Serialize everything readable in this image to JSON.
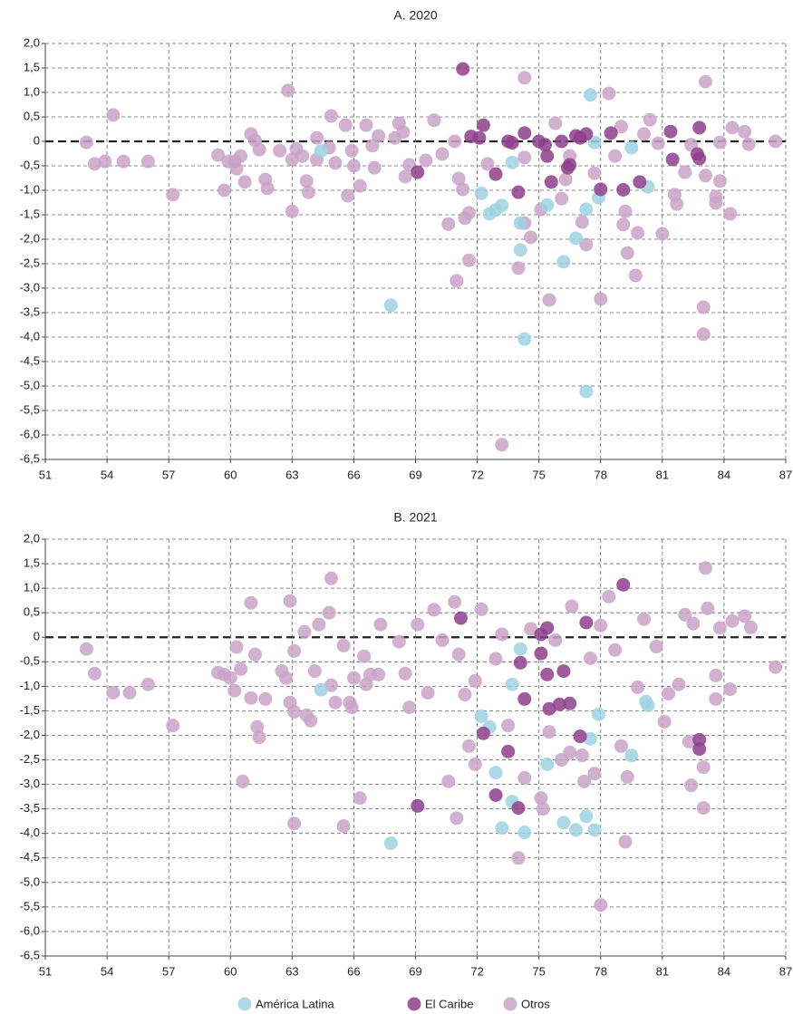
{
  "chart_data": [
    {
      "type": "scatter",
      "title": "A. 2020",
      "xlim": [
        51,
        87
      ],
      "ylim": [
        -6.5,
        2
      ],
      "grid": true,
      "xticks": [
        51,
        54,
        57,
        60,
        63,
        66,
        69,
        72,
        75,
        78,
        81,
        84,
        87
      ],
      "yticks": [
        {
          "value": -6.5,
          "label": "-6,5"
        },
        {
          "value": -6,
          "label": "-6,0"
        },
        {
          "value": -5.5,
          "label": "-5,5"
        },
        {
          "value": -5,
          "label": "-5,0"
        },
        {
          "value": -4.5,
          "label": "-4,5"
        },
        {
          "value": -4,
          "label": "-4,0"
        },
        {
          "value": -3.5,
          "label": "-3,5"
        },
        {
          "value": -3,
          "label": "-3,0"
        },
        {
          "value": -2.5,
          "label": "-2,5"
        },
        {
          "value": -2,
          "label": "-2,0"
        },
        {
          "value": -1.5,
          "label": "-1,5"
        },
        {
          "value": -1,
          "label": "-1,0"
        },
        {
          "value": -0.5,
          "label": "-0,5"
        },
        {
          "value": 0,
          "label": "0"
        },
        {
          "value": 0.5,
          "label": "0,5"
        },
        {
          "value": 1,
          "label": "1,0"
        },
        {
          "value": 1.5,
          "label": "1,5"
        },
        {
          "value": 2,
          "label": "2,0"
        }
      ],
      "series": [
        {
          "color": "#c9a2c8",
          "x": [
            53.0,
            53.4,
            54.3,
            53.9,
            54.8,
            56.0,
            57.2,
            59.4,
            59.7,
            59.9,
            60.2,
            60.3,
            60.5,
            60.7,
            61.0,
            61.2,
            61.4,
            61.7,
            61.8,
            62.4,
            62.8,
            63.0,
            63.0,
            63.2,
            63.5,
            63.7,
            63.8,
            64.2,
            64.2,
            64.9,
            64.8,
            65.1,
            65.6,
            65.7,
            65.9,
            66.0,
            66.3,
            66.6,
            66.9,
            67.0,
            67.2,
            68.0,
            68.2,
            68.4,
            68.5,
            68.7,
            69.5,
            69.9,
            70.3,
            70.6,
            70.9,
            71.0,
            71.1,
            71.4,
            71.6,
            71.6,
            71.3,
            72.5,
            73.2,
            74.0,
            74.3,
            74.3,
            74.6,
            74.3,
            75.1,
            75.5,
            75.8,
            76.1,
            76.3,
            76.5,
            77.1,
            77.3,
            77.7,
            78.0,
            78.4,
            78.7,
            79.0,
            79.1,
            79.2,
            79.3,
            79.7,
            79.8,
            80.1,
            80.4,
            80.8,
            81.0,
            81.6,
            81.7,
            82.1,
            82.4,
            83.1,
            83.0,
            83.0,
            83.1,
            83.6,
            83.6,
            83.8,
            83.8,
            84.3,
            84.4,
            85.0,
            85.2,
            86.5
          ],
          "values": [
            -0.02,
            -0.46,
            0.54,
            -0.41,
            -0.41,
            -0.41,
            -1.09,
            -0.28,
            -1.0,
            -0.41,
            -0.41,
            -0.56,
            -0.3,
            -0.83,
            0.15,
            0.02,
            -0.17,
            -0.78,
            -0.96,
            -0.19,
            1.04,
            -1.43,
            -0.37,
            -0.15,
            -0.3,
            -0.81,
            -1.04,
            -0.37,
            0.07,
            0.52,
            -0.13,
            -0.44,
            0.33,
            -1.11,
            -0.19,
            -0.5,
            -0.91,
            0.33,
            -0.09,
            -0.54,
            0.11,
            0.07,
            0.37,
            0.19,
            -0.72,
            -0.48,
            -0.39,
            0.43,
            -0.26,
            -1.69,
            0.0,
            -2.85,
            -0.76,
            -1.57,
            -1.46,
            -2.43,
            -0.98,
            -0.46,
            -6.2,
            -2.59,
            1.3,
            -1.67,
            -1.96,
            -0.33,
            -1.39,
            -3.24,
            0.37,
            -1.17,
            -0.78,
            -0.3,
            -1.65,
            -2.11,
            -0.65,
            -3.22,
            0.98,
            -0.3,
            0.3,
            -1.7,
            -1.43,
            -2.28,
            -2.74,
            -1.87,
            0.15,
            0.44,
            -0.04,
            -1.89,
            -1.09,
            -1.28,
            -0.63,
            -0.07,
            1.22,
            -3.39,
            -3.94,
            -0.7,
            -1.13,
            -1.26,
            -0.81,
            -0.02,
            -1.48,
            0.28,
            0.2,
            -0.06,
            0.0
          ]
        },
        {
          "color": "#9fd2e2",
          "x": [
            64.4,
            77.5,
            77.7,
            79.5,
            80.3,
            77.9,
            73.7,
            72.2,
            72.6,
            72.9,
            73.2,
            75.4,
            74.1,
            74.1,
            76.2,
            76.8,
            77.3,
            67.8,
            74.3,
            77.3
          ],
          "values": [
            -0.2,
            0.95,
            -0.02,
            -0.13,
            -0.93,
            -1.15,
            -0.43,
            -1.06,
            -1.48,
            -1.4,
            -1.31,
            -1.3,
            -1.67,
            -2.22,
            -2.46,
            -1.98,
            -1.39,
            -3.35,
            -4.04,
            -5.11
          ]
        },
        {
          "color": "#8e3f8c",
          "x": [
            71.3,
            69.1,
            72.3,
            71.7,
            72.1,
            72.9,
            73.5,
            74.3,
            74.0,
            75.0,
            75.3,
            75.4,
            75.6,
            76.1,
            76.4,
            76.5,
            76.8,
            77.0,
            77.3,
            78.0,
            79.1,
            79.9,
            81.4,
            81.5,
            82.7,
            82.8,
            82.8,
            73.7,
            78.5
          ],
          "values": [
            1.48,
            -0.63,
            0.33,
            0.1,
            0.07,
            -0.67,
            0.0,
            0.17,
            -1.04,
            0.0,
            -0.07,
            -0.3,
            -0.83,
            0.0,
            -0.54,
            -0.48,
            0.11,
            0.07,
            0.15,
            -0.98,
            -0.99,
            -0.83,
            0.2,
            -0.37,
            -0.26,
            -0.35,
            0.28,
            -0.03,
            0.17
          ]
        }
      ]
    },
    {
      "type": "scatter",
      "title": "B. 2021",
      "xlim": [
        51,
        87
      ],
      "ylim": [
        -6.5,
        2
      ],
      "grid": true,
      "xticks": [
        51,
        54,
        57,
        60,
        63,
        66,
        69,
        72,
        75,
        78,
        81,
        84,
        87
      ],
      "yticks": [
        {
          "value": -6.5,
          "label": "-6,5"
        },
        {
          "value": -6,
          "label": "-6,0"
        },
        {
          "value": -5.5,
          "label": "-5,5"
        },
        {
          "value": -5,
          "label": "-5,0"
        },
        {
          "value": -4.5,
          "label": "-4,5"
        },
        {
          "value": -4,
          "label": "-4,0"
        },
        {
          "value": -3.5,
          "label": "-3,5"
        },
        {
          "value": -3,
          "label": "-3,0"
        },
        {
          "value": -2.5,
          "label": "-2,5"
        },
        {
          "value": -2,
          "label": "-2,0"
        },
        {
          "value": -1.5,
          "label": "-1,5"
        },
        {
          "value": -1,
          "label": "-1,0"
        },
        {
          "value": -0.5,
          "label": "-0,5"
        },
        {
          "value": 0,
          "label": "0"
        },
        {
          "value": 0.5,
          "label": "0,5"
        },
        {
          "value": 1,
          "label": "1,0"
        },
        {
          "value": 1.5,
          "label": "1,5"
        },
        {
          "value": 2,
          "label": "2,0"
        }
      ],
      "series": [
        {
          "name": "Otros",
          "color": "#c9a2c8",
          "x": [
            53.0,
            53.4,
            54.3,
            55.1,
            56.0,
            57.2,
            59.4,
            59.7,
            60.0,
            60.2,
            60.3,
            60.5,
            60.6,
            61.0,
            61.0,
            61.2,
            61.3,
            61.4,
            61.7,
            62.5,
            62.7,
            62.9,
            62.9,
            63.1,
            63.1,
            63.1,
            63.6,
            63.7,
            63.9,
            64.1,
            64.3,
            64.8,
            64.9,
            64.9,
            65.1,
            65.5,
            65.5,
            65.8,
            65.9,
            66.0,
            66.3,
            66.5,
            66.6,
            66.8,
            67.2,
            67.3,
            68.2,
            68.5,
            68.7,
            69.1,
            69.6,
            69.9,
            70.3,
            70.6,
            70.9,
            71.0,
            71.1,
            71.4,
            71.6,
            71.9,
            71.9,
            72.2,
            72.9,
            73.2,
            73.5,
            74.0,
            74.3,
            74.6,
            75.1,
            75.2,
            75.5,
            75.8,
            76.1,
            76.5,
            76.6,
            77.1,
            77.2,
            77.5,
            77.7,
            78.0,
            78.0,
            78.4,
            78.7,
            79.0,
            79.3,
            79.2,
            79.8,
            80.1,
            80.7,
            81.1,
            81.3,
            81.8,
            82.1,
            82.3,
            82.4,
            82.5,
            83.1,
            83.2,
            83.0,
            83.0,
            83.6,
            83.6,
            83.8,
            84.3,
            84.4,
            85.0,
            85.3,
            86.5
          ],
          "values": [
            -0.24,
            -0.74,
            -1.13,
            -1.13,
            -0.96,
            -1.8,
            -0.72,
            -0.76,
            -0.83,
            -1.09,
            -0.2,
            -0.65,
            -2.94,
            0.7,
            -1.24,
            -0.35,
            -1.83,
            -2.04,
            -1.26,
            -0.69,
            -0.83,
            0.74,
            -1.33,
            -0.28,
            -3.8,
            -1.52,
            0.11,
            -1.59,
            -1.7,
            -0.69,
            0.26,
            0.5,
            1.2,
            -0.98,
            -1.33,
            -3.85,
            -0.17,
            -1.33,
            -1.43,
            -0.83,
            -3.28,
            -0.39,
            -0.96,
            -0.76,
            -0.76,
            0.26,
            -0.09,
            -0.74,
            -1.43,
            0.26,
            -1.13,
            0.56,
            -0.06,
            -2.94,
            0.72,
            -3.69,
            -0.35,
            -1.17,
            -2.22,
            -0.89,
            -2.59,
            0.57,
            -0.44,
            0.06,
            -1.8,
            -4.5,
            -2.87,
            0.17,
            -3.28,
            -3.5,
            -1.93,
            -0.06,
            -2.5,
            -2.35,
            0.63,
            -2.41,
            -2.94,
            -0.43,
            -2.78,
            0.24,
            -5.46,
            0.83,
            -0.26,
            -2.22,
            -2.85,
            -4.17,
            -1.02,
            0.37,
            -0.19,
            -1.72,
            -1.15,
            -0.96,
            0.46,
            -2.13,
            -3.02,
            0.28,
            1.41,
            0.59,
            -2.65,
            -3.48,
            -0.78,
            -1.26,
            0.19,
            -1.06,
            0.33,
            0.43,
            0.2,
            -0.61
          ]
        },
        {
          "name": "América Latina",
          "color": "#9fd2e2",
          "x": [
            64.4,
            67.8,
            72.2,
            72.6,
            72.9,
            73.2,
            73.7,
            73.7,
            74.1,
            74.3,
            75.4,
            76.2,
            76.8,
            77.3,
            77.5,
            77.7,
            77.9,
            79.5,
            80.2,
            80.3
          ],
          "values": [
            -1.07,
            -4.2,
            -1.61,
            -1.83,
            -2.76,
            -3.89,
            -3.35,
            -0.96,
            -0.24,
            -3.98,
            -2.59,
            -3.78,
            -3.93,
            -3.65,
            -2.07,
            -3.93,
            -1.57,
            -2.41,
            -1.31,
            -1.39
          ]
        },
        {
          "name": "El Caribe",
          "color": "#8e3f8c",
          "x": [
            69.1,
            71.2,
            72.3,
            72.9,
            73.5,
            74.0,
            74.1,
            74.3,
            75.1,
            75.1,
            75.4,
            75.4,
            75.5,
            76.0,
            76.2,
            76.5,
            77.0,
            77.3,
            79.1,
            82.8,
            82.8
          ],
          "values": [
            -3.44,
            0.39,
            -1.96,
            -3.22,
            -2.33,
            -3.48,
            -0.52,
            -1.26,
            -0.33,
            0.06,
            0.19,
            -0.76,
            -1.46,
            -1.37,
            -0.69,
            -1.35,
            -2.02,
            0.3,
            1.07,
            -2.09,
            -2.28
          ]
        }
      ]
    }
  ]
}
